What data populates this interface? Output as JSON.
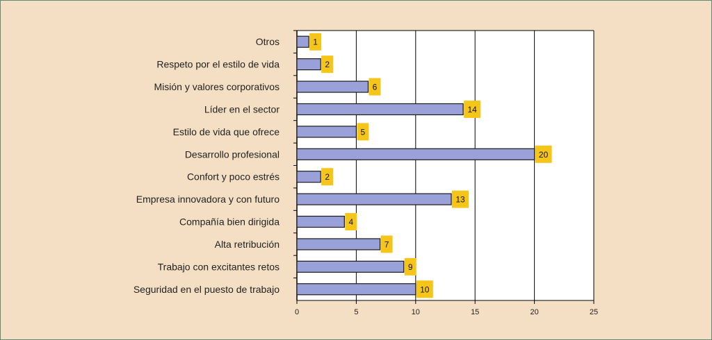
{
  "chart_data": {
    "type": "bar",
    "orientation": "horizontal",
    "categories": [
      "Otros",
      "Respeto por el estilo de vida",
      "Misión y valores corporativos",
      "Líder en el sector",
      "Estilo de vida que ofrece",
      "Desarrollo profesional",
      "Confort y poco estrés",
      "Empresa innovadora y con futuro",
      "Compañía bien dirigida",
      "Alta retribución",
      "Trabajo con excitantes retos",
      "Seguridad en el puesto de trabajo"
    ],
    "values": [
      1,
      2,
      6,
      14,
      5,
      20,
      2,
      13,
      4,
      7,
      9,
      10
    ],
    "xlim": [
      0,
      25
    ],
    "xticks": [
      0,
      5,
      10,
      15,
      20,
      25
    ],
    "grid": "vertical",
    "data_labels": true
  },
  "colors": {
    "background": "#f5dfc4",
    "plot_area": "#ffffff",
    "bar_fill": "#9aa0d8",
    "bar_stroke": "#1a1a1a",
    "label_box": "#f6c51a",
    "grid": "#000000"
  }
}
